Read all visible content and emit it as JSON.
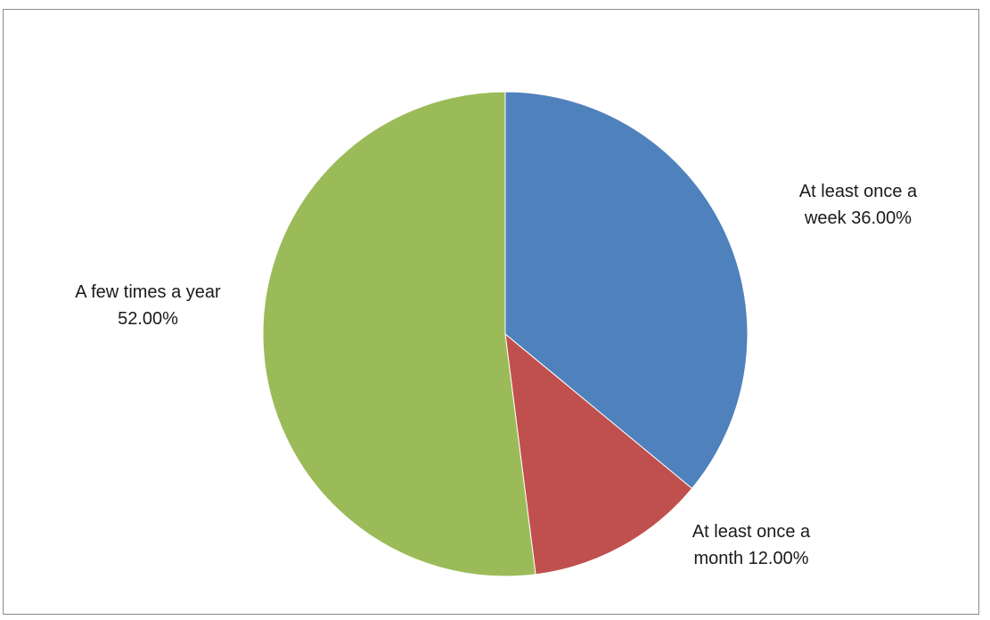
{
  "chart_data": {
    "type": "pie",
    "title": "",
    "start_angle_deg": 0,
    "direction": "clockwise",
    "legend": "none",
    "slices": [
      {
        "id": "weekly",
        "label_lines": [
          "At least once a",
          "week 36.00%"
        ],
        "value": 36.0,
        "color": "#4F81BD"
      },
      {
        "id": "monthly",
        "label_lines": [
          "At least once a",
          "month 12.00%"
        ],
        "value": 12.0,
        "color": "#C0504D"
      },
      {
        "id": "yearly",
        "label_lines": [
          "A few times a year",
          "52.00%"
        ],
        "value": 52.0,
        "color": "#9BBB59"
      }
    ]
  }
}
